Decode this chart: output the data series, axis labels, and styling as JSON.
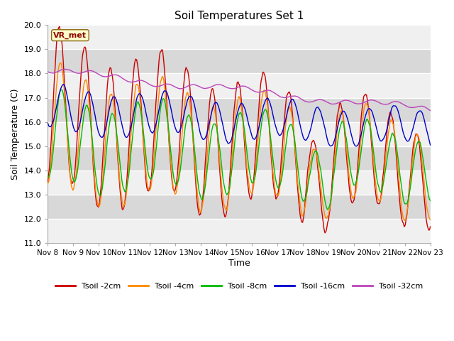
{
  "title": "Soil Temperatures Set 1",
  "xlabel": "Time",
  "ylabel": "Soil Temperature (C)",
  "ylim": [
    11.0,
    20.0
  ],
  "yticks": [
    11.0,
    12.0,
    13.0,
    14.0,
    15.0,
    16.0,
    17.0,
    18.0,
    19.0,
    20.0
  ],
  "xtick_labels": [
    "Nov 8",
    "Nov 9",
    "Nov 10",
    "Nov 11",
    "Nov 12",
    "Nov 13",
    "Nov 14",
    "Nov 15",
    "Nov 16",
    "Nov 17",
    "Nov 18",
    "Nov 19",
    "Nov 20",
    "Nov 21",
    "Nov 22",
    "Nov 23"
  ],
  "station_label": "VR_met",
  "lines": [
    {
      "label": "Tsoil -2cm",
      "color": "#cc0000"
    },
    {
      "label": "Tsoil -4cm",
      "color": "#ff8800"
    },
    {
      "label": "Tsoil -8cm",
      "color": "#00bb00"
    },
    {
      "label": "Tsoil -16cm",
      "color": "#0000cc"
    },
    {
      "label": "Tsoil -32cm",
      "color": "#bb44bb"
    }
  ],
  "background_color": "#ffffff",
  "plot_bg_color": "#e0e0e0",
  "grid_color": "#ffffff",
  "figsize": [
    6.4,
    4.8
  ],
  "dpi": 100
}
